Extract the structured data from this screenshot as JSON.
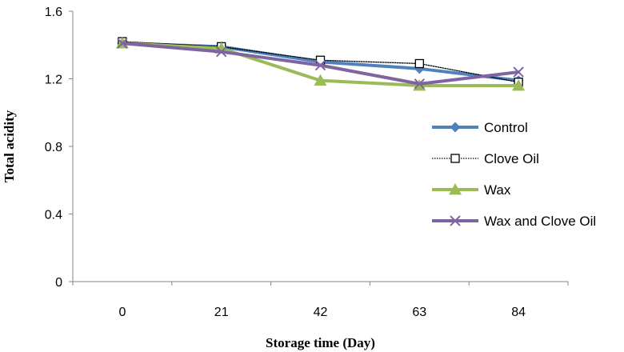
{
  "chart_data": {
    "type": "line",
    "title": "",
    "xlabel": "Storage time (Day)",
    "ylabel": "Total acidity",
    "categories": [
      "0",
      "21",
      "42",
      "63",
      "84"
    ],
    "ylim": [
      0,
      1.6
    ],
    "yticks": [
      0,
      0.4,
      0.8,
      1.2,
      1.6
    ],
    "ytick_labels": [
      "0",
      "0.4",
      "0.8",
      "1.2",
      "1.6"
    ],
    "grid": false,
    "legend_position": "right",
    "series": [
      {
        "name": "Control",
        "values": [
          1.41,
          1.39,
          1.3,
          1.26,
          1.19
        ],
        "color": "#4f81bd",
        "marker": "diamond",
        "style": "solid"
      },
      {
        "name": "Clove Oil",
        "values": [
          1.42,
          1.39,
          1.31,
          1.29,
          1.18
        ],
        "color": "#000000",
        "marker": "square-open",
        "style": "dotted"
      },
      {
        "name": "Wax",
        "values": [
          1.41,
          1.38,
          1.19,
          1.16,
          1.16
        ],
        "color": "#9bbb59",
        "marker": "triangle",
        "style": "solid"
      },
      {
        "name": "Wax and Clove Oil",
        "values": [
          1.41,
          1.36,
          1.28,
          1.17,
          1.24
        ],
        "color": "#8064a2",
        "marker": "x",
        "style": "solid"
      }
    ]
  }
}
